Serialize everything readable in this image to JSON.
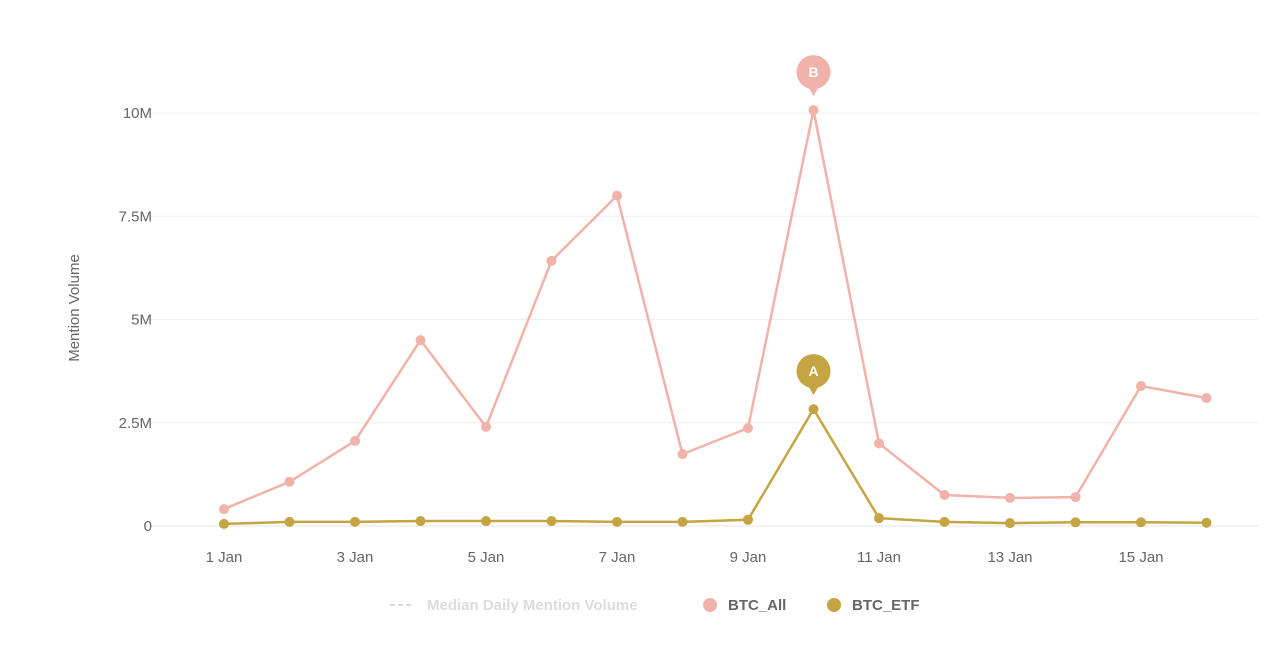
{
  "chart_data": {
    "type": "line",
    "title": "",
    "xlabel": "",
    "ylabel": "Mention Volume",
    "ylim": [
      0,
      11000000
    ],
    "grid": true,
    "legend_position": "bottom",
    "x": [
      "1 Jan",
      "2 Jan",
      "3 Jan",
      "4 Jan",
      "5 Jan",
      "6 Jan",
      "7 Jan",
      "8 Jan",
      "9 Jan",
      "10 Jan",
      "11 Jan",
      "12 Jan",
      "13 Jan",
      "14 Jan",
      "15 Jan",
      "16 Jan"
    ],
    "x_tick_labels": [
      "1 Jan",
      "3 Jan",
      "5 Jan",
      "7 Jan",
      "9 Jan",
      "11 Jan",
      "13 Jan",
      "15 Jan"
    ],
    "y_ticks": [
      0,
      2500000,
      5000000,
      7500000,
      10000000
    ],
    "y_tick_labels": [
      "0",
      "2.5M",
      "5M",
      "7.5M",
      "10M"
    ],
    "series": [
      {
        "name": "BTC_All",
        "color": "#f0b2a9",
        "values": [
          410000,
          1070000,
          2060000,
          4500000,
          2400000,
          6420000,
          8000000,
          1740000,
          2370000,
          10070000,
          2000000,
          750000,
          680000,
          700000,
          3390000,
          3100000
        ]
      },
      {
        "name": "BTC_ETF",
        "color": "#c4a443",
        "values": [
          50000,
          100000,
          100000,
          120000,
          120000,
          120000,
          100000,
          100000,
          150000,
          2830000,
          190000,
          100000,
          70000,
          90000,
          90000,
          80000
        ]
      }
    ],
    "legend": [
      {
        "label": "Median Daily Mention Volume",
        "style": "dashed",
        "color": "#d9d9d9",
        "disabled": true
      },
      {
        "label": "BTC_All",
        "color": "#f0b2a9"
      },
      {
        "label": "BTC_ETF",
        "color": "#c4a443"
      }
    ],
    "annotations": [
      {
        "label": "B",
        "series": "BTC_All",
        "x": "10 Jan"
      },
      {
        "label": "A",
        "series": "BTC_ETF",
        "x": "10 Jan"
      }
    ]
  }
}
